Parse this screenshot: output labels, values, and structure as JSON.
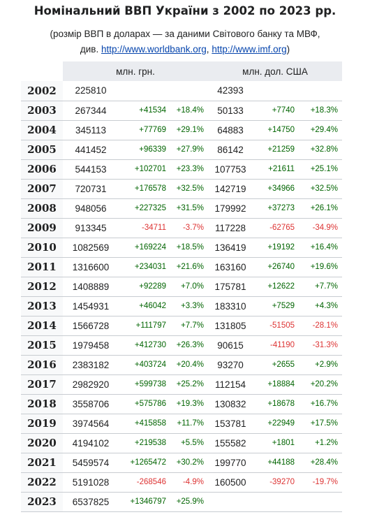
{
  "title": "Номінальний ВВП України з 2002 по 2023 рр.",
  "subtitle": {
    "line1": "(розмір ВВП в доларах — за даними Світового банку та МВФ,",
    "line2_prefix": "див. ",
    "link1": "http://www.worldbank.org",
    "separator": ", ",
    "link2": "http://www.imf.org",
    "line2_suffix": ")"
  },
  "headers": {
    "uah": "млн. грн.",
    "usd": "млн. дол. США"
  },
  "colors": {
    "positive": "#006400",
    "negative": "#dd3333",
    "link": "#0645ad",
    "header_bg": "#eaecf0",
    "year_bg": "#f8f9fa"
  },
  "chart_data": {
    "type": "table",
    "columns": [
      "year",
      "млн. грн.",
      "change",
      "change %",
      "млн. дол. США",
      "change",
      "change %"
    ],
    "rows": [
      [
        "2002",
        "225810",
        "",
        "",
        "42393",
        "",
        ""
      ],
      [
        "2003",
        "267344",
        "+41534",
        "+18.4%",
        "50133",
        "+7740",
        "+18.3%"
      ],
      [
        "2004",
        "345113",
        "+77769",
        "+29.1%",
        "64883",
        "+14750",
        "+29.4%"
      ],
      [
        "2005",
        "441452",
        "+96339",
        "+27.9%",
        "86142",
        "+21259",
        "+32.8%"
      ],
      [
        "2006",
        "544153",
        "+102701",
        "+23.3%",
        "107753",
        "+21611",
        "+25.1%"
      ],
      [
        "2007",
        "720731",
        "+176578",
        "+32.5%",
        "142719",
        "+34966",
        "+32.5%"
      ],
      [
        "2008",
        "948056",
        "+227325",
        "+31.5%",
        "179992",
        "+37273",
        "+26.1%"
      ],
      [
        "2009",
        "913345",
        "-34711",
        "-3.7%",
        "117228",
        "-62765",
        "-34.9%"
      ],
      [
        "2010",
        "1082569",
        "+169224",
        "+18.5%",
        "136419",
        "+19192",
        "+16.4%"
      ],
      [
        "2011",
        "1316600",
        "+234031",
        "+21.6%",
        "163160",
        "+26740",
        "+19.6%"
      ],
      [
        "2012",
        "1408889",
        "+92289",
        "+7.0%",
        "175781",
        "+12622",
        "+7.7%"
      ],
      [
        "2013",
        "1454931",
        "+46042",
        "+3.3%",
        "183310",
        "+7529",
        "+4.3%"
      ],
      [
        "2014",
        "1566728",
        "+111797",
        "+7.7%",
        "131805",
        "-51505",
        "-28.1%"
      ],
      [
        "2015",
        "1979458",
        "+412730",
        "+26.3%",
        "90615",
        "-41190",
        "-31.3%"
      ],
      [
        "2016",
        "2383182",
        "+403724",
        "+20.4%",
        "93270",
        "+2655",
        "+2.9%"
      ],
      [
        "2017",
        "2982920",
        "+599738",
        "+25.2%",
        "112154",
        "+18884",
        "+20.2%"
      ],
      [
        "2018",
        "3558706",
        "+575786",
        "+19.3%",
        "130832",
        "+18678",
        "+16.7%"
      ],
      [
        "2019",
        "3974564",
        "+415858",
        "+11.7%",
        "153781",
        "+22949",
        "+17.5%"
      ],
      [
        "2020",
        "4194102",
        "+219538",
        "+5.5%",
        "155582",
        "+1801",
        "+1.2%"
      ],
      [
        "2021",
        "5459574",
        "+1265472",
        "+30.2%",
        "199770",
        "+44188",
        "+28.4%"
      ],
      [
        "2022",
        "5191028",
        "-268546",
        "-4.9%",
        "160500",
        "-39270",
        "-19.7%"
      ],
      [
        "2023",
        "6537825",
        "+1346797",
        "+25.9%",
        "",
        "",
        ""
      ]
    ]
  }
}
